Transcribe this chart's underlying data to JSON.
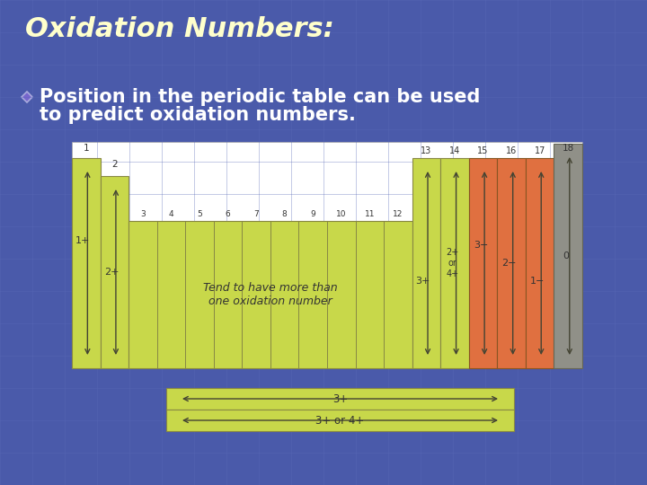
{
  "bg_color": "#4a5aaa",
  "title": "Oxidation Numbers:",
  "title_color": "#ffffcc",
  "title_fontsize": 22,
  "bullet_text_line1": "Position in the periodic table can be used",
  "bullet_text_line2": "to predict oxidation numbers.",
  "bullet_color": "#ffffff",
  "bullet_fontsize": 15,
  "green_color": "#c8d84a",
  "orange_color": "#e07040",
  "gray_color": "#909088",
  "text_color": "#333333",
  "arrow_color": "#444433",
  "transition_text": "Tend to have more than\none oxidation number",
  "bottom_bar1": "3+",
  "bottom_bar2": "3+ or 4+",
  "grid_color": "#5a6ab8",
  "grid_alpha": 0.5
}
